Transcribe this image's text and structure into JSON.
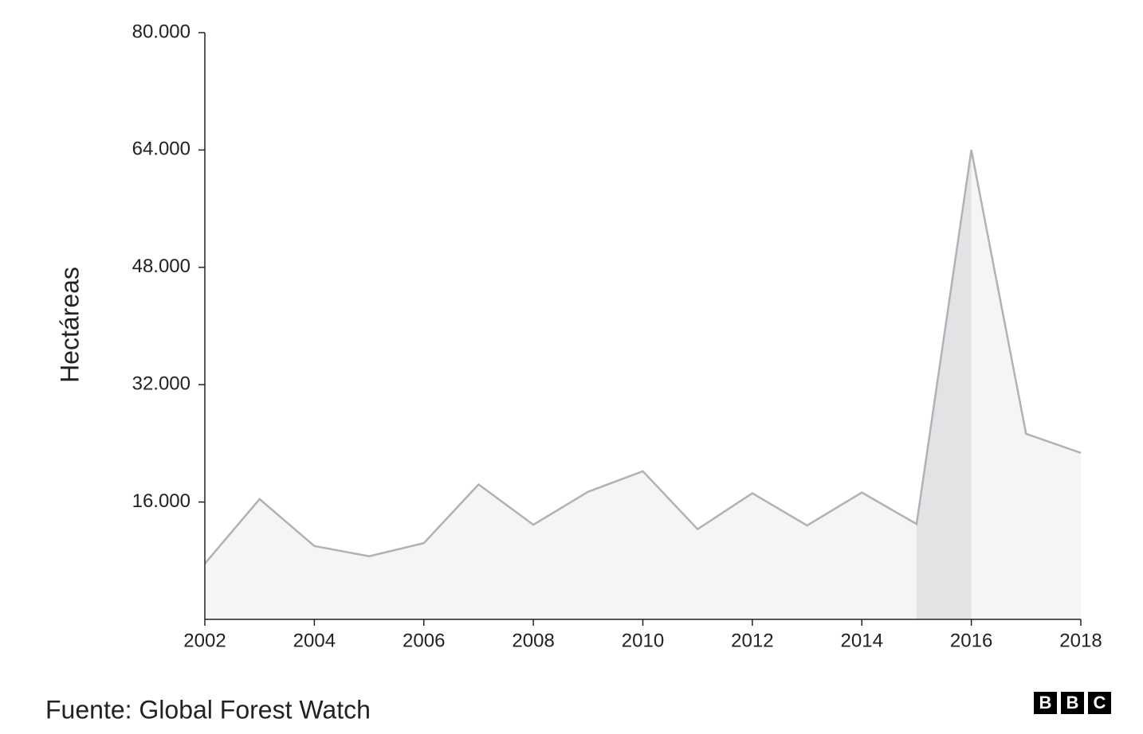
{
  "chart_data": {
    "type": "area",
    "y_label": "Hectáreas",
    "x": [
      2002,
      2003,
      2004,
      2005,
      2006,
      2007,
      2008,
      2009,
      2010,
      2011,
      2012,
      2013,
      2014,
      2015,
      2016,
      2017,
      2018
    ],
    "values": [
      7600,
      16400,
      10000,
      8600,
      10400,
      18400,
      12900,
      17400,
      20200,
      12300,
      17200,
      12800,
      17300,
      13000,
      64000,
      25300,
      22700
    ],
    "color": "#b1b1b6",
    "fill": "#f5f5f5",
    "highlight_x": [
      2015,
      2016
    ],
    "highlight_color": "#e3e3e6",
    "xlim": [
      2002,
      2018
    ],
    "xticks": [
      2002,
      2004,
      2006,
      2008,
      2010,
      2012,
      2014,
      2016,
      2018
    ],
    "ylim": [
      0,
      80000
    ],
    "yticks": [
      {
        "value": 16000,
        "label": "16.000"
      },
      {
        "value": 32000,
        "label": "32.000"
      },
      {
        "value": 48000,
        "label": "48.000"
      },
      {
        "value": 64000,
        "label": "64.000"
      },
      {
        "value": 80000,
        "label": "80.000"
      }
    ],
    "source": "Fuente: Global Forest Watch",
    "logo": [
      "B",
      "B",
      "C"
    ]
  }
}
